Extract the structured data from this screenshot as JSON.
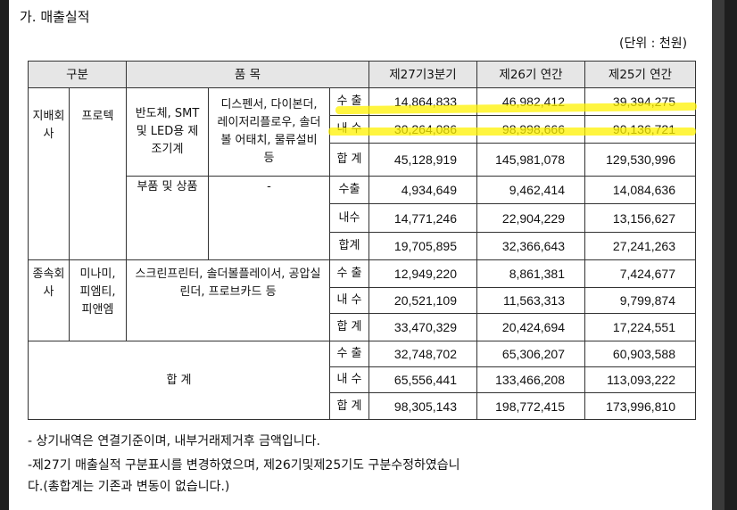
{
  "section_title": "가. 매출실적",
  "unit_label": "(단위 : 천원)",
  "table": {
    "headers": {
      "category": "구분",
      "item": "품 목",
      "col1": "제27기3분기",
      "col2": "제26기 연간",
      "col3": "제25기 연간"
    },
    "parent": {
      "label": "지배회사",
      "company": "프로텍",
      "group_a": {
        "product": "반도체, SMT 및 LED용 제조기계",
        "detail": "디스펜서, 다이본더, 레이저리플로우, 솔더볼 어태치, 물류설비 등",
        "rows": [
          {
            "type": "수 출",
            "v1": "14,864,833",
            "v2": "46,982,412",
            "v3": "39,394,275"
          },
          {
            "type": "내 수",
            "v1": "30,264,086",
            "v2": "98,998,666",
            "v3": "90,136,721"
          },
          {
            "type": "합 계",
            "v1": "45,128,919",
            "v2": "145,981,078",
            "v3": "129,530,996"
          }
        ]
      },
      "group_b": {
        "product": "부품 및 상품",
        "detail": "-",
        "rows": [
          {
            "type": "수출",
            "v1": "4,934,649",
            "v2": "9,462,414",
            "v3": "14,084,636"
          },
          {
            "type": "내수",
            "v1": "14,771,246",
            "v2": "22,904,229",
            "v3": "13,156,627"
          },
          {
            "type": "합계",
            "v1": "19,705,895",
            "v2": "32,366,643",
            "v3": "27,241,263"
          }
        ]
      }
    },
    "subsidiary": {
      "label": "종속회사",
      "company": "미나미, 피엠티, 피앤엠",
      "detail": "스크린프린터, 솔더볼플레이서, 공압실린더, 프로브카드 등",
      "rows": [
        {
          "type": "수 출",
          "v1": "12,949,220",
          "v2": "8,861,381",
          "v3": "7,424,677"
        },
        {
          "type": "내 수",
          "v1": "20,521,109",
          "v2": "11,563,313",
          "v3": "9,799,874"
        },
        {
          "type": "합 계",
          "v1": "33,470,329",
          "v2": "20,424,694",
          "v3": "17,224,551"
        }
      ]
    },
    "total": {
      "label": "합 계",
      "rows": [
        {
          "type": "수 출",
          "v1": "32,748,702",
          "v2": "65,306,207",
          "v3": "60,903,588"
        },
        {
          "type": "내 수",
          "v1": "65,556,441",
          "v2": "133,466,208",
          "v3": "113,093,222"
        },
        {
          "type": "합 계",
          "v1": "98,305,143",
          "v2": "198,772,415",
          "v3": "173,996,810"
        }
      ]
    }
  },
  "notes": [
    "- 상기내역은 연결기준이며, 내부거래제거후 금액입니다.",
    "-제27기 매출실적 구분표시를 변경하였으며, 제26기및제25기도 구분수정하였습니",
    "다.(총합계는 기존과 변동이 없습니다.)"
  ],
  "highlight_color": "#fff200"
}
